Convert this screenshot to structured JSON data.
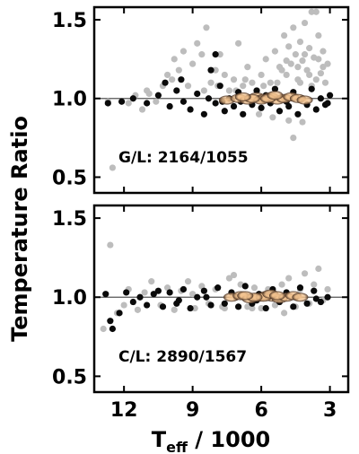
{
  "chart_data": {
    "type": "scatter",
    "shared_ylabel": "Temperature Ratio",
    "shared_xlabel": {
      "main": "T",
      "sub": "eff",
      "rest": " / 1000"
    },
    "xlim": [
      13.3,
      2.2
    ],
    "x_ticks": [
      12,
      9,
      6,
      3
    ],
    "x_tick_labels": [
      "12",
      "9",
      "6",
      "3"
    ],
    "panels": [
      {
        "annotation": "G/L: 2164/1055",
        "ylim": [
          0.4,
          1.58
        ],
        "y_ticks": [
          0.5,
          1.0,
          1.5
        ],
        "y_tick_labels": [
          "0.5",
          "1.0",
          "1.5"
        ],
        "reference_line": 1.0,
        "series": [
          {
            "role": "gray",
            "points": [
              [
                11.8,
                0.97
              ],
              [
                11.5,
                1.02
              ],
              [
                11.2,
                0.93
              ],
              [
                10.9,
                1.03
              ],
              [
                10.6,
                0.98
              ],
              [
                10.3,
                1.08
              ],
              [
                10.1,
                1.15
              ],
              [
                9.9,
                1.12
              ],
              [
                9.8,
                1.25
              ],
              [
                9.6,
                1.18
              ],
              [
                9.4,
                1.3
              ],
              [
                9.2,
                1.08
              ],
              [
                9.0,
                1.22
              ],
              [
                8.8,
                1.35
              ],
              [
                8.6,
                1.28
              ],
              [
                8.4,
                1.45
              ],
              [
                8.2,
                1.1
              ],
              [
                8.0,
                1.18
              ],
              [
                7.8,
                1.28
              ],
              [
                7.6,
                1.15
              ],
              [
                7.4,
                1.05
              ],
              [
                7.2,
                1.12
              ],
              [
                7.0,
                1.35
              ],
              [
                6.8,
                1.08
              ],
              [
                6.6,
                1.2
              ],
              [
                6.4,
                1.1
              ],
              [
                6.2,
                1.05
              ],
              [
                6.0,
                1.15
              ],
              [
                5.8,
                1.25
              ],
              [
                5.6,
                1.1
              ],
              [
                5.4,
                1.3
              ],
              [
                5.2,
                1.2
              ],
              [
                5.0,
                1.4
              ],
              [
                4.9,
                1.15
              ],
              [
                4.8,
                1.33
              ],
              [
                4.7,
                1.22
              ],
              [
                4.6,
                1.45
              ],
              [
                4.5,
                1.28
              ],
              [
                4.4,
                1.12
              ],
              [
                4.3,
                1.36
              ],
              [
                4.2,
                1.24
              ],
              [
                4.1,
                1.48
              ],
              [
                4.0,
                1.18
              ],
              [
                3.9,
                1.32
              ],
              [
                3.8,
                1.55
              ],
              [
                3.7,
                1.26
              ],
              [
                3.6,
                1.55
              ],
              [
                3.5,
                1.4
              ],
              [
                3.4,
                1.16
              ],
              [
                3.3,
                1.3
              ],
              [
                3.2,
                1.1
              ],
              [
                3.1,
                1.22
              ],
              [
                5.5,
                0.88
              ],
              [
                4.8,
                0.86
              ],
              [
                4.2,
                0.85
              ],
              [
                6.1,
                0.9
              ],
              [
                4.6,
                0.75
              ],
              [
                12.5,
                0.56
              ],
              [
                12.7,
                0.98
              ],
              [
                11.0,
                1.05
              ],
              [
                8.5,
                1.05
              ],
              [
                7.9,
                1.08
              ],
              [
                7.1,
                1.05
              ],
              [
                6.7,
                1.12
              ],
              [
                5.9,
                1.08
              ],
              [
                5.3,
                1.1
              ],
              [
                4.4,
                1.2
              ],
              [
                3.9,
                1.15
              ],
              [
                3.5,
                1.25
              ],
              [
                3.3,
                1.2
              ],
              [
                4.1,
                1.28
              ],
              [
                5.1,
                1.18
              ],
              [
                4.9,
                1.24
              ],
              [
                4.3,
                1.1
              ],
              [
                3.8,
                1.08
              ],
              [
                3.6,
                1.12
              ]
            ]
          },
          {
            "role": "black",
            "points": [
              [
                12.7,
                0.97
              ],
              [
                12.1,
                0.98
              ],
              [
                11.6,
                1.0
              ],
              [
                11.0,
                0.97
              ],
              [
                10.5,
                1.02
              ],
              [
                10.0,
                0.95
              ],
              [
                9.7,
                1.05
              ],
              [
                9.4,
                0.98
              ],
              [
                9.1,
                0.93
              ],
              [
                8.8,
                1.03
              ],
              [
                8.5,
                0.9
              ],
              [
                8.3,
                1.0
              ],
              [
                8.0,
                0.97
              ],
              [
                7.8,
                1.08
              ],
              [
                7.6,
                0.92
              ],
              [
                7.4,
                1.0
              ],
              [
                7.2,
                0.95
              ],
              [
                7.0,
                1.04
              ],
              [
                6.8,
                0.9
              ],
              [
                6.6,
                1.0
              ],
              [
                6.4,
                0.96
              ],
              [
                6.2,
                1.05
              ],
              [
                6.0,
                0.94
              ],
              [
                5.8,
                1.02
              ],
              [
                5.6,
                0.97
              ],
              [
                5.4,
                1.06
              ],
              [
                5.2,
                0.92
              ],
              [
                5.0,
                1.0
              ],
              [
                4.8,
                0.95
              ],
              [
                4.6,
                1.04
              ],
              [
                4.4,
                0.9
              ],
              [
                4.2,
                1.0
              ],
              [
                4.0,
                0.96
              ],
              [
                3.8,
                1.06
              ],
              [
                3.6,
                0.93
              ],
              [
                3.4,
                1.0
              ],
              [
                3.2,
                0.96
              ],
              [
                3.0,
                1.02
              ],
              [
                8.2,
                1.18
              ],
              [
                8.0,
                1.28
              ],
              [
                10.2,
                1.1
              ],
              [
                9.5,
                1.12
              ],
              [
                3.1,
                0.97
              ],
              [
                4.9,
                0.98
              ],
              [
                5.9,
                0.99
              ],
              [
                6.9,
                0.98
              ],
              [
                7.7,
                0.98
              ]
            ]
          },
          {
            "role": "density",
            "points": [
              [
                7.5,
                0.99
              ],
              [
                7.0,
                1.0
              ],
              [
                6.6,
                0.99
              ],
              [
                6.2,
                1.01
              ],
              [
                5.9,
                1.0
              ],
              [
                5.6,
                1.01
              ],
              [
                5.3,
                0.99
              ],
              [
                5.0,
                1.0
              ],
              [
                4.7,
                1.01
              ],
              [
                4.4,
                1.0
              ],
              [
                4.1,
                0.99
              ],
              [
                6.0,
                0.99
              ],
              [
                5.7,
                1.0
              ],
              [
                5.4,
                1.02
              ],
              [
                6.4,
                1.0
              ],
              [
                6.8,
                1.01
              ]
            ]
          }
        ]
      },
      {
        "annotation": "C/L: 2890/1567",
        "ylim": [
          0.4,
          1.58
        ],
        "y_ticks": [
          0.5,
          1.0,
          1.5
        ],
        "y_tick_labels": [
          "0.5",
          "1.0",
          "1.5"
        ],
        "reference_line": 1.0,
        "series": [
          {
            "role": "gray",
            "points": [
              [
                12.6,
                1.33
              ],
              [
                12.3,
                0.9
              ],
              [
                12.0,
                0.95
              ],
              [
                11.8,
                1.05
              ],
              [
                11.4,
                0.92
              ],
              [
                11.1,
                1.03
              ],
              [
                10.8,
                1.1
              ],
              [
                10.4,
                0.95
              ],
              [
                10.1,
                1.06
              ],
              [
                9.8,
                0.92
              ],
              [
                9.5,
                1.04
              ],
              [
                9.2,
                1.1
              ],
              [
                8.9,
                0.93
              ],
              [
                8.6,
                1.07
              ],
              [
                8.3,
                0.96
              ],
              [
                8.0,
                1.05
              ],
              [
                7.7,
                0.94
              ],
              [
                7.4,
                1.12
              ],
              [
                7.2,
                1.14
              ],
              [
                6.9,
                1.08
              ],
              [
                6.6,
                0.94
              ],
              [
                6.3,
                1.06
              ],
              [
                6.0,
                0.93
              ],
              [
                5.7,
                1.05
              ],
              [
                5.4,
                0.95
              ],
              [
                5.1,
                1.08
              ],
              [
                4.8,
                1.12
              ],
              [
                4.5,
                0.94
              ],
              [
                4.3,
                1.05
              ],
              [
                4.1,
                1.15
              ],
              [
                3.9,
                0.96
              ],
              [
                3.7,
                1.08
              ],
              [
                3.5,
                1.18
              ],
              [
                3.3,
                0.98
              ],
              [
                3.1,
                1.05
              ],
              [
                12.9,
                0.8
              ],
              [
                7.6,
                0.93
              ],
              [
                6.4,
                0.93
              ],
              [
                5.0,
                0.9
              ],
              [
                9.0,
                1.02
              ],
              [
                11.3,
                1.0
              ]
            ]
          },
          {
            "role": "black",
            "points": [
              [
                12.8,
                1.02
              ],
              [
                12.6,
                0.85
              ],
              [
                12.5,
                0.8
              ],
              [
                12.2,
                0.9
              ],
              [
                11.9,
                1.03
              ],
              [
                11.6,
                0.97
              ],
              [
                11.3,
                1.0
              ],
              [
                11.0,
                0.95
              ],
              [
                10.7,
                1.02
              ],
              [
                10.3,
                0.94
              ],
              [
                10.0,
                1.03
              ],
              [
                9.7,
                0.96
              ],
              [
                9.4,
                1.05
              ],
              [
                9.1,
                0.93
              ],
              [
                8.8,
                1.0
              ],
              [
                8.5,
                1.04
              ],
              [
                8.2,
                0.95
              ],
              [
                7.9,
                1.06
              ],
              [
                7.6,
                0.96
              ],
              [
                7.3,
                1.03
              ],
              [
                7.0,
                0.94
              ],
              [
                6.7,
                1.07
              ],
              [
                6.4,
                0.96
              ],
              [
                6.1,
                1.02
              ],
              [
                5.8,
                0.93
              ],
              [
                5.5,
                1.05
              ],
              [
                5.2,
                0.97
              ],
              [
                4.9,
                1.03
              ],
              [
                4.6,
                0.94
              ],
              [
                4.3,
                1.06
              ],
              [
                4.0,
                0.96
              ],
              [
                3.7,
                1.04
              ],
              [
                3.4,
                0.97
              ],
              [
                3.1,
                1.0
              ],
              [
                10.5,
                1.04
              ],
              [
                9.6,
                0.98
              ],
              [
                8.4,
                1.0
              ],
              [
                7.1,
                1.0
              ],
              [
                6.2,
                0.98
              ],
              [
                5.4,
                1.0
              ],
              [
                4.5,
                1.0
              ],
              [
                3.6,
                0.99
              ]
            ]
          },
          {
            "role": "density",
            "points": [
              [
                7.3,
                1.0
              ],
              [
                6.9,
                1.01
              ],
              [
                6.5,
                0.99
              ],
              [
                6.1,
                1.0
              ],
              [
                5.8,
                1.01
              ],
              [
                5.5,
                1.0
              ],
              [
                5.2,
                0.99
              ],
              [
                4.9,
                1.0
              ],
              [
                4.6,
                1.01
              ],
              [
                4.3,
                1.0
              ],
              [
                5.9,
                1.0
              ],
              [
                5.6,
                1.02
              ],
              [
                6.3,
                1.0
              ],
              [
                6.7,
                1.01
              ],
              [
                5.3,
                1.01
              ]
            ]
          }
        ]
      }
    ],
    "colors": {
      "gray": "#bdbdbd",
      "black": "#0a0a0a",
      "density_core": "#f2c28e",
      "density_edge": "#3a2418",
      "reference_line": "#555555"
    }
  }
}
